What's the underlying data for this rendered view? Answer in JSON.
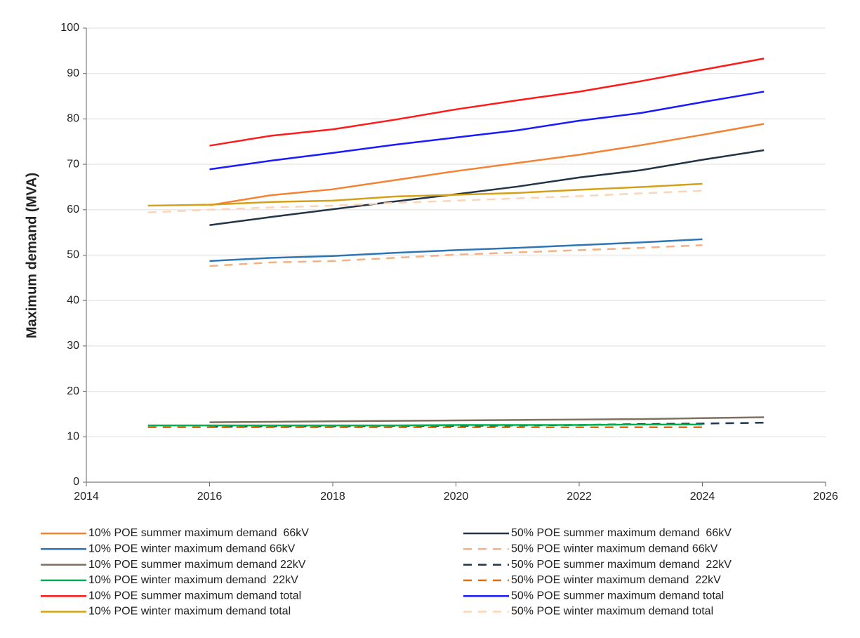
{
  "chart_data": {
    "type": "line",
    "y_label": "Maximum demand (MVA)",
    "x": [
      2015,
      2016,
      2017,
      2018,
      2019,
      2020,
      2021,
      2022,
      2023,
      2024,
      2025
    ],
    "xlim": [
      2014,
      2026
    ],
    "xticks": [
      2014,
      2016,
      2018,
      2020,
      2022,
      2024,
      2026
    ],
    "ylim": [
      0,
      100
    ],
    "yticks": [
      0,
      10,
      20,
      30,
      40,
      50,
      60,
      70,
      80,
      90,
      100
    ],
    "grid": true,
    "legend": "bottom",
    "series": [
      {
        "name": "10% POE summer maximum demand  66kV",
        "color": "#f58233",
        "dashed": false,
        "values": [
          null,
          61.0,
          63.2,
          64.5,
          66.5,
          68.5,
          70.3,
          72.1,
          74.2,
          76.5,
          78.9
        ]
      },
      {
        "name": "50% POE summer maximum demand  66kV",
        "color": "#243447",
        "dashed": false,
        "values": [
          null,
          56.6,
          58.4,
          60.1,
          61.8,
          63.4,
          65.1,
          67.1,
          68.7,
          71.0,
          73.1
        ]
      },
      {
        "name": "10% POE winter maximum demand 66kV",
        "color": "#2e75b6",
        "dashed": false,
        "values": [
          null,
          48.7,
          49.4,
          49.8,
          50.5,
          51.1,
          51.6,
          52.2,
          52.8,
          53.5,
          null
        ]
      },
      {
        "name": "50% POE winter maximum demand 66kV",
        "color": "#f4b183",
        "dashed": true,
        "values": [
          null,
          47.6,
          48.4,
          48.7,
          49.4,
          50.1,
          50.6,
          51.1,
          51.6,
          52.2,
          null
        ]
      },
      {
        "name": "10% POE summer maximum demand 22kV",
        "color": "#7f7060",
        "dashed": false,
        "values": [
          null,
          13.2,
          13.3,
          13.4,
          13.5,
          13.6,
          13.7,
          13.8,
          13.9,
          14.1,
          14.3
        ]
      },
      {
        "name": "50% POE summer maximum demand  22kV",
        "color": "#1f3550",
        "dashed": true,
        "values": [
          null,
          12.2,
          12.3,
          12.3,
          12.4,
          12.4,
          12.5,
          12.6,
          12.8,
          12.9,
          13.1
        ]
      },
      {
        "name": "10% POE winter maximum demand  22kV",
        "color": "#00b050",
        "dashed": false,
        "values": [
          12.5,
          12.5,
          12.5,
          12.5,
          12.5,
          12.6,
          12.6,
          12.6,
          12.7,
          12.7,
          null
        ]
      },
      {
        "name": "50% POE winter maximum demand  22kV",
        "color": "#e46c0a",
        "dashed": true,
        "values": [
          12.1,
          12.1,
          12.1,
          12.1,
          12.1,
          12.1,
          12.1,
          12.1,
          12.1,
          12.1,
          null
        ]
      },
      {
        "name": "10% POE summer maximum demand total",
        "color": "#ff1a1a",
        "dashed": false,
        "values": [
          null,
          74.1,
          76.3,
          77.7,
          79.8,
          82.1,
          84.1,
          86.0,
          88.3,
          90.8,
          93.3
        ]
      },
      {
        "name": "50% POE summer maximum demand total",
        "color": "#1a1aff",
        "dashed": false,
        "values": [
          null,
          68.9,
          70.8,
          72.5,
          74.3,
          75.9,
          77.5,
          79.6,
          81.3,
          83.7,
          86.0
        ]
      },
      {
        "name": "10% POE winter maximum demand total",
        "color": "#d4a017",
        "dashed": false,
        "values": [
          60.9,
          61.1,
          61.7,
          62.0,
          62.9,
          63.3,
          63.7,
          64.4,
          65.0,
          65.7,
          null
        ]
      },
      {
        "name": "50% POE winter maximum demand total",
        "color": "#fbd5b5",
        "dashed": true,
        "values": [
          59.4,
          60.0,
          60.5,
          60.9,
          61.5,
          62.0,
          62.5,
          63.0,
          63.6,
          64.2,
          null
        ]
      }
    ]
  }
}
